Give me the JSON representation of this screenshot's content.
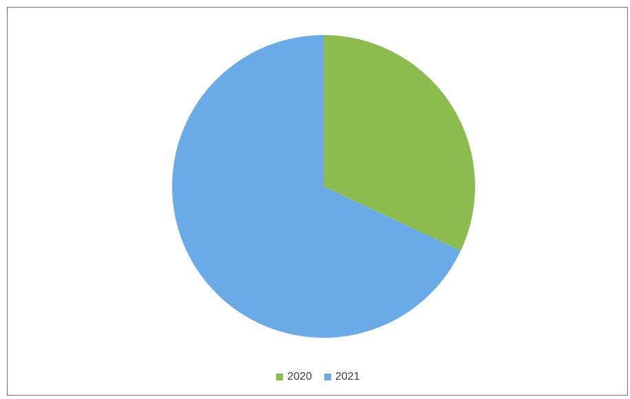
{
  "chart_data": {
    "type": "pie",
    "categories": [
      "2020",
      "2021"
    ],
    "values": [
      32,
      68
    ],
    "colors": [
      "#8cbc4f",
      "#6aaae6"
    ],
    "legend_position": "bottom"
  }
}
